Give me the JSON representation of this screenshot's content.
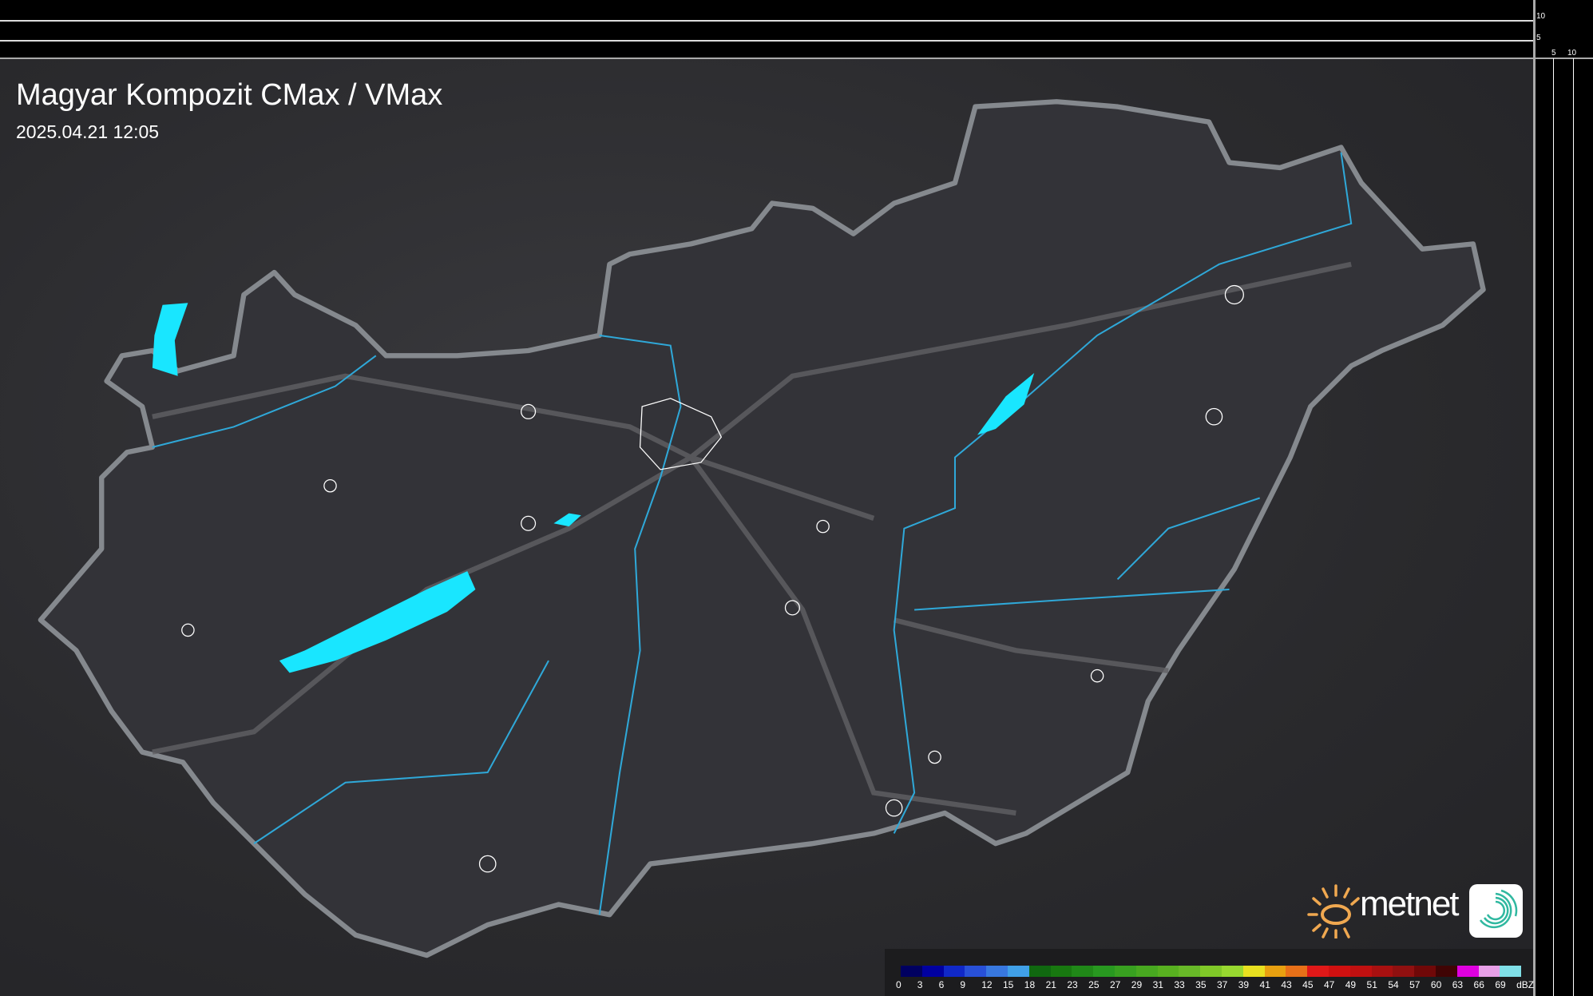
{
  "header": {
    "title": "Magyar Kompozit CMax / VMax",
    "timestamp": "2025.04.21 12:05"
  },
  "scale": {
    "vertical_labels": [
      "10",
      "5"
    ],
    "horizontal_labels": [
      "5",
      "10"
    ]
  },
  "legend": {
    "unit": "dBZ",
    "ticks": [
      "0",
      "3",
      "6",
      "9",
      "12",
      "15",
      "18",
      "21",
      "23",
      "25",
      "27",
      "29",
      "31",
      "33",
      "35",
      "37",
      "39",
      "41",
      "43",
      "45",
      "47",
      "49",
      "51",
      "54",
      "57",
      "60",
      "63",
      "66",
      "69"
    ],
    "colors": [
      "#000060",
      "#0000a0",
      "#1028c8",
      "#2850d8",
      "#3878e0",
      "#40a0e8",
      "#106810",
      "#187810",
      "#208818",
      "#289820",
      "#38a020",
      "#48a820",
      "#58b020",
      "#68b828",
      "#80c828",
      "#98d830",
      "#e8e020",
      "#e8a010",
      "#e87018",
      "#e01818",
      "#d01010",
      "#c01010",
      "#a81010",
      "#901010",
      "#700808",
      "#400404",
      "#e000e0",
      "#e8a0e8",
      "#80e0e8"
    ]
  },
  "colors": {
    "lakes": "#19e6ff",
    "rivers": "#2fa8d8",
    "border": "#8a8e92",
    "roads": "#6a6a6e",
    "settlements": "#ffffff"
  },
  "logo": {
    "text": "metnet"
  }
}
